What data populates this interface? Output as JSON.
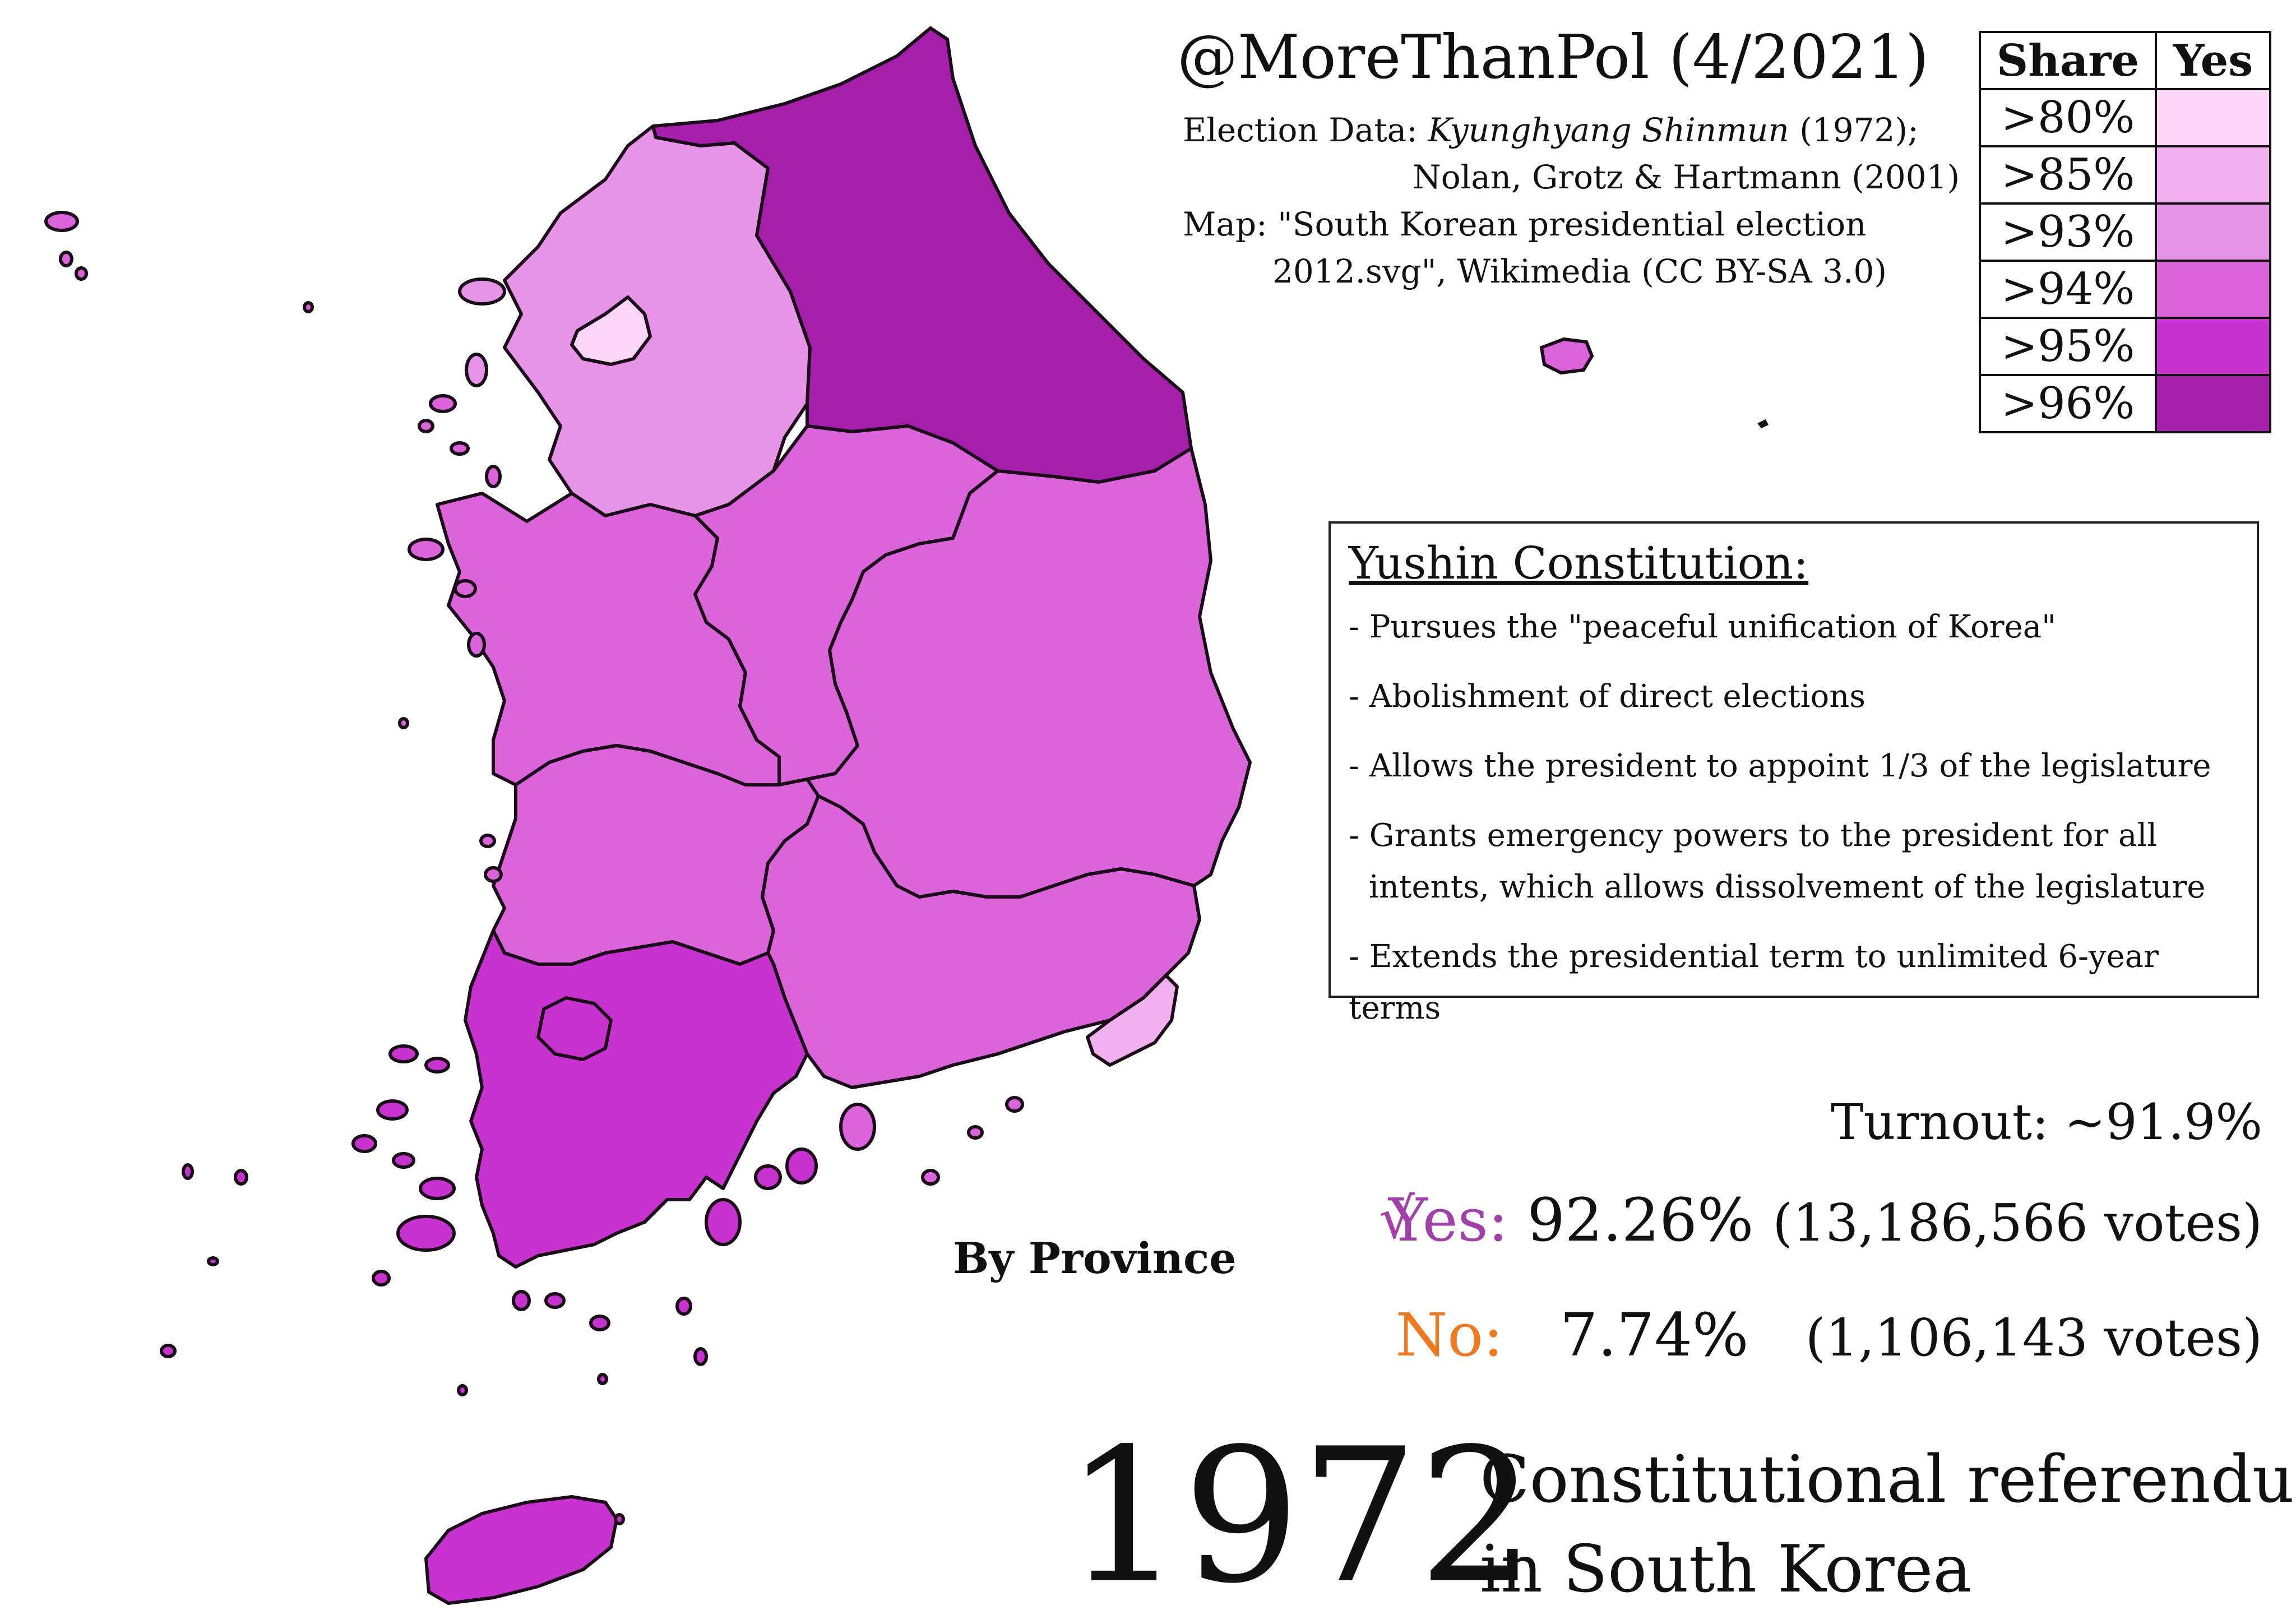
{
  "header": {
    "title": "@MoreThanPol (4/2021)",
    "credits": {
      "election_label": "Election Data: ",
      "election_source_italic": "Kyunghyang Shinmun",
      "election_source_year": " (1972);",
      "election_source_2": "Nolan, Grotz & Hartmann (2001)",
      "map_label": "Map: \"South Korean presidential election",
      "map_label_2": "2012.svg\", Wikimedia (CC BY-SA 3.0)"
    }
  },
  "legend": {
    "header_share": "Share",
    "header_yes": "Yes",
    "rows": [
      {
        "share": ">80%",
        "color": "#fcd6f8"
      },
      {
        "share": ">85%",
        "color": "#f1b1ee"
      },
      {
        "share": ">93%",
        "color": "#e793e6"
      },
      {
        "share": ">94%",
        "color": "#dc64da"
      },
      {
        "share": ">95%",
        "color": "#c833cf"
      },
      {
        "share": ">96%",
        "color": "#a51faa"
      }
    ]
  },
  "info_box": {
    "title": "Yushin Constitution:",
    "bullets": [
      "- Pursues the \"peaceful unification of Korea\"",
      "- Abolishment of direct elections",
      "- Allows the president to appoint 1/3 of the legislature",
      "- Grants emergency powers to the president for all",
      "intents, which allows dissolvement of the legislature",
      "- Extends the presidential term to unlimited 6-year terms"
    ]
  },
  "results": {
    "turnout": "Turnout: ~91.9%",
    "check": "√",
    "yes_label": "Yes:",
    "yes_pct": "92.26%",
    "yes_votes": "(13,186,566 votes)",
    "no_label": "No:",
    "no_pct": "7.74%",
    "no_votes": "(1,106,143 votes)"
  },
  "map": {
    "caption": "By Province",
    "regions": [
      {
        "name": "Gangwon",
        "share_class": ">96%"
      },
      {
        "name": "Gyeonggi",
        "share_class": ">93%"
      },
      {
        "name": "Seoul",
        "share_class": ">80%"
      },
      {
        "name": "Chungbuk",
        "share_class": ">94%"
      },
      {
        "name": "Chungnam",
        "share_class": ">94%"
      },
      {
        "name": "Gyeongbuk",
        "share_class": ">94%"
      },
      {
        "name": "Jeonbuk",
        "share_class": ">94%"
      },
      {
        "name": "Gyeongnam",
        "share_class": ">94%"
      },
      {
        "name": "Busan",
        "share_class": ">85%"
      },
      {
        "name": "Jeonnam",
        "share_class": ">95%"
      },
      {
        "name": "Jeju",
        "share_class": ">95%"
      }
    ]
  },
  "footer": {
    "year": "1972",
    "subtitle_line1": "Constitutional referendum",
    "subtitle_line2": "in South Korea"
  }
}
